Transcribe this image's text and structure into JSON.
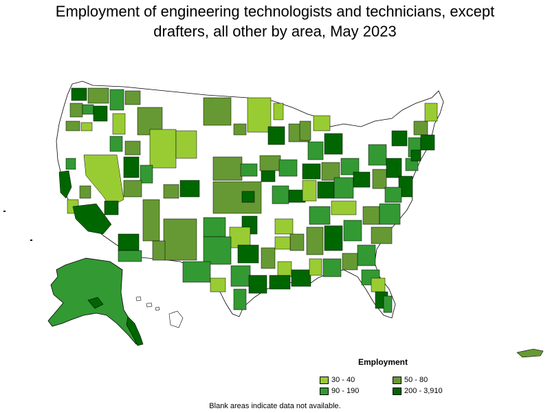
{
  "title_line1": "Employment of engineering technologists and technicians, except",
  "title_line2": "drafters, all other by area, May 2023",
  "legend": {
    "title": "Employment",
    "items": [
      {
        "label": "30 - 40",
        "color": "#99cc33"
      },
      {
        "label": "50 - 80",
        "color": "#669933"
      },
      {
        "label": "90 - 190",
        "color": "#339933"
      },
      {
        "label": "200 - 3,910",
        "color": "#006600"
      }
    ]
  },
  "footnote": "Blank areas indicate data not available.",
  "colors": {
    "border": "#000000",
    "no_data": "#ffffff"
  }
}
